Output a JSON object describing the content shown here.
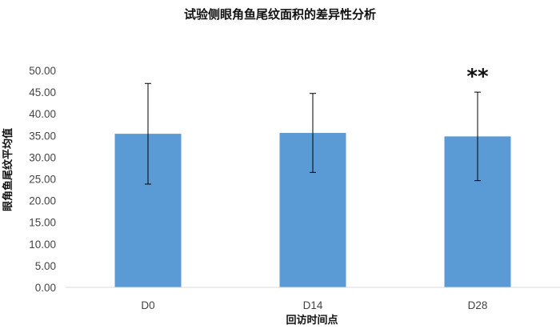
{
  "chart_data": {
    "type": "bar",
    "title": "试验侧眼角鱼尾纹面积的差异性分析",
    "xlabel": "回访时间点",
    "ylabel": "眼角鱼尾纹平均值",
    "categories": [
      "D0",
      "D14",
      "D28"
    ],
    "values": [
      35.4,
      35.6,
      34.8
    ],
    "error_low": [
      23.8,
      26.5,
      24.6
    ],
    "error_high": [
      47.0,
      44.7,
      45.0
    ],
    "ylim": [
      0,
      50
    ],
    "yticks": [
      "0.00",
      "5.00",
      "10.00",
      "15.00",
      "20.00",
      "25.00",
      "30.00",
      "35.00",
      "40.00",
      "45.00",
      "50.00"
    ],
    "ytick_values": [
      0,
      5,
      10,
      15,
      20,
      25,
      30,
      35,
      40,
      45,
      50
    ],
    "annotations": [
      {
        "category": "D28",
        "text": "**"
      }
    ],
    "bar_color": "#5b9bd5",
    "grid": false
  }
}
